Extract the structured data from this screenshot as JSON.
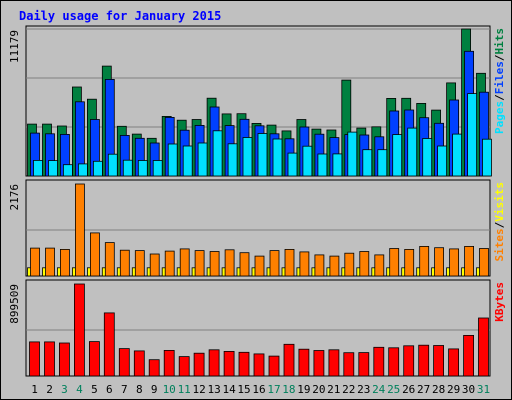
{
  "chart_data": {
    "title": "Daily usage for January 2015",
    "categories": [
      "1",
      "2",
      "3",
      "4",
      "5",
      "6",
      "7",
      "8",
      "9",
      "10",
      "11",
      "12",
      "13",
      "14",
      "15",
      "16",
      "17",
      "18",
      "19",
      "20",
      "21",
      "22",
      "23",
      "24",
      "25",
      "26",
      "27",
      "28",
      "29",
      "30",
      "31"
    ],
    "weekend_days": [
      "3",
      "4",
      "10",
      "11",
      "17",
      "18",
      "24",
      "25",
      "31"
    ],
    "colors": {
      "hits": "#008040",
      "files": "#0040ff",
      "pages": "#00e0ff",
      "visits": "#ffff00",
      "sites": "#ff8000",
      "kbytes": "#ff0000",
      "title": "#0000ff",
      "weekend_label": "#00805c",
      "weekday_label": "#000000",
      "panel_bg": "#c0c0c0"
    },
    "panels": [
      {
        "type": "bar",
        "ymax_label": "11179",
        "ymax": 11179,
        "legend": [
          {
            "text": "Pages",
            "color": "#00e0ff"
          },
          {
            "text": "/",
            "color": "#000000"
          },
          {
            "text": "Files",
            "color": "#0040ff"
          },
          {
            "text": "/",
            "color": "#000000"
          },
          {
            "text": "Hits",
            "color": "#008040"
          }
        ],
        "series": [
          {
            "name": "Hits",
            "color": "#008040",
            "values": [
              3950,
              3950,
              3800,
              6770,
              5840,
              8360,
              3780,
              3190,
              2870,
              4530,
              4240,
              4300,
              5920,
              4720,
              4740,
              4000,
              3870,
              3430,
              4300,
              3570,
              3500,
              7290,
              3640,
              3740,
              5900,
              5910,
              5520,
              5010,
              7080,
              11180,
              7810
            ]
          },
          {
            "name": "Files",
            "color": "#0040ff",
            "values": [
              3260,
              3210,
              3160,
              5640,
              4300,
              7350,
              3090,
              2870,
              2510,
              4460,
              3480,
              3850,
              5250,
              3830,
              4310,
              3820,
              3210,
              2830,
              3730,
              3180,
              2920,
              3150,
              3120,
              2980,
              4940,
              5020,
              4430,
              4010,
              5780,
              9480,
              6370
            ]
          },
          {
            "name": "Pages",
            "color": "#00e0ff",
            "values": [
              1190,
              1170,
              860,
              920,
              1120,
              1660,
              1200,
              1180,
              1180,
              2430,
              2280,
              2510,
              3440,
              2450,
              2930,
              3230,
              2810,
              1740,
              2270,
              1670,
              1680,
              3340,
              2000,
              2000,
              3150,
              3640,
              2850,
              2280,
              3190,
              6270,
              2800
            ]
          }
        ]
      },
      {
        "type": "bar",
        "ymax_label": "2176",
        "ymax": 2176,
        "legend": [
          {
            "text": "Sites",
            "color": "#ff8000"
          },
          {
            "text": "/",
            "color": "#000000"
          },
          {
            "text": "Visits",
            "color": "#ffff00"
          }
        ],
        "series": [
          {
            "name": "Visits",
            "color": "#ffff00",
            "values": [
              195,
              195,
              195,
              195,
              195,
              195,
              195,
              195,
              195,
              195,
              195,
              195,
              195,
              195,
              195,
              195,
              195,
              195,
              195,
              195,
              195,
              195,
              195,
              195,
              195,
              195,
              195,
              195,
              195,
              195,
              195
            ]
          },
          {
            "name": "Sites",
            "color": "#ff8000",
            "values": [
              660,
              660,
              630,
              2176,
              1020,
              790,
              610,
              600,
              520,
              590,
              640,
              600,
              580,
              620,
              550,
              470,
              600,
              630,
              570,
              500,
              470,
              540,
              580,
              500,
              650,
              630,
              700,
              670,
              640,
              700,
              650
            ]
          }
        ]
      },
      {
        "type": "bar",
        "ymax_label": "899509",
        "ymax": 899509,
        "legend": [
          {
            "text": "KBytes",
            "color": "#ff0000"
          }
        ],
        "series": [
          {
            "name": "KBytes",
            "color": "#ff0000",
            "values": [
              333000,
              333000,
              323000,
              899509,
              336000,
              617000,
              268000,
              245000,
              159000,
              250000,
              190000,
              223000,
              256000,
              241000,
              232000,
              216000,
              195000,
              310000,
              262000,
              249000,
              256000,
              228000,
              229000,
              281000,
              276000,
              295000,
              301000,
              298000,
              265000,
              397000,
              567000
            ]
          }
        ]
      }
    ]
  }
}
